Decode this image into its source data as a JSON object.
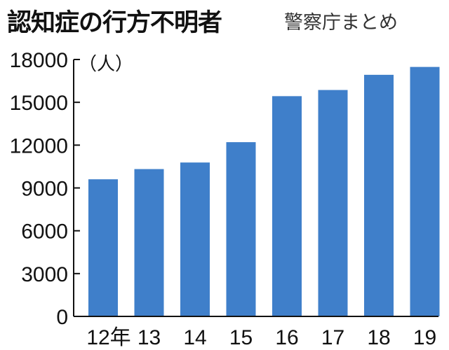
{
  "header": {
    "title": "認知症の行方不明者",
    "source": "警察庁まとめ"
  },
  "chart_data": {
    "type": "bar",
    "title": "認知症の行方不明者",
    "unit_label": "（人）",
    "categories": [
      "12年",
      "13",
      "14",
      "15",
      "16",
      "17",
      "18",
      "19"
    ],
    "values": [
      9607,
      10322,
      10783,
      12208,
      15432,
      15863,
      16927,
      17479
    ],
    "ylim": [
      0,
      18000
    ],
    "yticks": [
      0,
      3000,
      6000,
      9000,
      12000,
      15000,
      18000
    ],
    "grid": false,
    "bar_color": "#3f7fca",
    "source": "警察庁まとめ"
  }
}
